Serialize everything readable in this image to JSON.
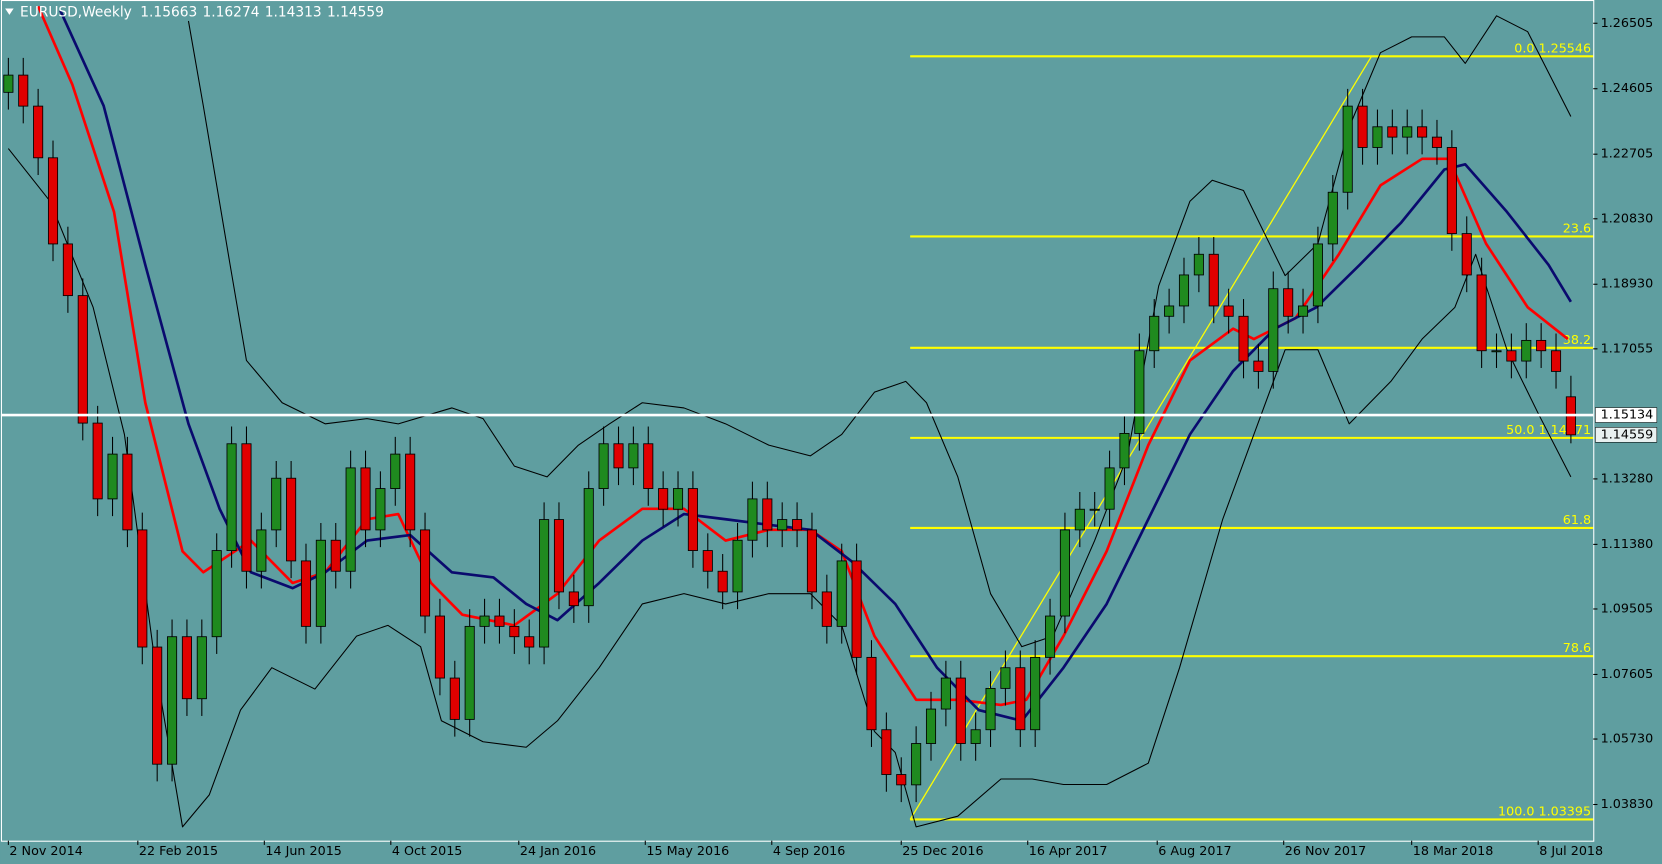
{
  "chart_data": {
    "type": "candlestick",
    "title": "EURUSD,Weekly",
    "open": [
      1.245,
      1.25,
      1.241,
      1.226,
      1.201,
      1.186,
      1.149,
      1.127,
      1.14,
      1.118,
      1.084,
      1.05,
      1.087,
      1.069,
      1.087,
      1.112,
      1.143,
      1.106,
      1.118,
      1.133,
      1.109,
      1.09,
      1.115,
      1.106,
      1.136,
      1.118,
      1.13,
      1.14,
      1.118,
      1.093,
      1.075,
      1.063,
      1.09,
      1.093,
      1.09,
      1.087,
      1.084,
      1.121,
      1.1,
      1.096,
      1.13,
      1.143,
      1.136,
      1.143,
      1.13,
      1.124,
      1.13,
      1.112,
      1.106,
      1.1,
      1.115,
      1.127,
      1.118,
      1.121,
      1.118,
      1.1,
      1.09,
      1.109,
      1.081,
      1.06,
      1.047,
      1.044,
      1.056,
      1.066,
      1.075,
      1.056,
      1.06,
      1.072,
      1.078,
      1.06,
      1.081,
      1.093,
      1.118,
      1.124,
      1.124,
      1.136,
      1.146,
      1.17,
      1.18,
      1.183,
      1.192,
      1.198,
      1.183,
      1.18,
      1.167,
      1.164,
      1.188,
      1.18,
      1.183,
      1.201,
      1.216,
      1.241,
      1.229,
      1.235,
      1.232,
      1.235,
      1.232,
      1.229,
      1.204,
      1.192,
      1.17,
      1.17,
      1.167,
      1.173,
      1.17,
      1.15663
    ],
    "high": [
      1.255,
      1.255,
      1.246,
      1.231,
      1.206,
      1.191,
      1.154,
      1.145,
      1.145,
      1.123,
      1.089,
      1.092,
      1.092,
      1.092,
      1.117,
      1.148,
      1.148,
      1.123,
      1.138,
      1.138,
      1.114,
      1.12,
      1.12,
      1.141,
      1.141,
      1.135,
      1.145,
      1.145,
      1.123,
      1.098,
      1.08,
      1.095,
      1.098,
      1.098,
      1.095,
      1.092,
      1.126,
      1.126,
      1.105,
      1.135,
      1.148,
      1.148,
      1.148,
      1.148,
      1.135,
      1.135,
      1.135,
      1.117,
      1.111,
      1.12,
      1.132,
      1.132,
      1.126,
      1.126,
      1.123,
      1.105,
      1.114,
      1.114,
      1.086,
      1.065,
      1.052,
      1.061,
      1.071,
      1.08,
      1.08,
      1.065,
      1.077,
      1.083,
      1.083,
      1.086,
      1.098,
      1.123,
      1.129,
      1.129,
      1.141,
      1.151,
      1.175,
      1.185,
      1.188,
      1.197,
      1.203,
      1.203,
      1.188,
      1.185,
      1.172,
      1.193,
      1.193,
      1.188,
      1.206,
      1.221,
      1.246,
      1.246,
      1.24,
      1.24,
      1.24,
      1.24,
      1.237,
      1.234,
      1.209,
      1.197,
      1.175,
      1.175,
      1.178,
      1.178,
      1.175,
      1.16274
    ],
    "low": [
      1.24,
      1.236,
      1.221,
      1.196,
      1.181,
      1.144,
      1.122,
      1.122,
      1.113,
      1.079,
      1.045,
      1.045,
      1.064,
      1.064,
      1.082,
      1.107,
      1.101,
      1.101,
      1.113,
      1.104,
      1.085,
      1.085,
      1.101,
      1.101,
      1.113,
      1.113,
      1.125,
      1.113,
      1.088,
      1.07,
      1.058,
      1.058,
      1.085,
      1.085,
      1.082,
      1.079,
      1.079,
      1.095,
      1.091,
      1.091,
      1.125,
      1.131,
      1.131,
      1.125,
      1.119,
      1.119,
      1.107,
      1.101,
      1.095,
      1.095,
      1.11,
      1.113,
      1.113,
      1.113,
      1.095,
      1.085,
      1.085,
      1.076,
      1.055,
      1.042,
      1.039,
      1.039,
      1.051,
      1.061,
      1.051,
      1.051,
      1.055,
      1.067,
      1.055,
      1.055,
      1.076,
      1.088,
      1.113,
      1.119,
      1.119,
      1.131,
      1.141,
      1.165,
      1.175,
      1.178,
      1.187,
      1.178,
      1.175,
      1.162,
      1.159,
      1.159,
      1.175,
      1.175,
      1.178,
      1.196,
      1.211,
      1.224,
      1.224,
      1.227,
      1.227,
      1.227,
      1.224,
      1.199,
      1.187,
      1.165,
      1.165,
      1.162,
      1.162,
      1.165,
      1.159,
      1.14313
    ],
    "close": [
      1.25,
      1.241,
      1.226,
      1.201,
      1.186,
      1.149,
      1.127,
      1.14,
      1.118,
      1.084,
      1.05,
      1.087,
      1.069,
      1.087,
      1.112,
      1.143,
      1.106,
      1.118,
      1.133,
      1.109,
      1.09,
      1.115,
      1.106,
      1.136,
      1.118,
      1.13,
      1.14,
      1.118,
      1.093,
      1.075,
      1.063,
      1.09,
      1.093,
      1.09,
      1.087,
      1.084,
      1.121,
      1.1,
      1.096,
      1.13,
      1.143,
      1.136,
      1.143,
      1.13,
      1.124,
      1.13,
      1.112,
      1.106,
      1.1,
      1.115,
      1.127,
      1.118,
      1.121,
      1.118,
      1.1,
      1.09,
      1.109,
      1.081,
      1.06,
      1.047,
      1.044,
      1.056,
      1.066,
      1.075,
      1.056,
      1.06,
      1.072,
      1.078,
      1.06,
      1.081,
      1.093,
      1.118,
      1.124,
      1.124,
      1.136,
      1.146,
      1.17,
      1.18,
      1.183,
      1.192,
      1.198,
      1.183,
      1.18,
      1.167,
      1.164,
      1.188,
      1.18,
      1.183,
      1.201,
      1.216,
      1.241,
      1.229,
      1.235,
      1.232,
      1.235,
      1.232,
      1.229,
      1.204,
      1.192,
      1.17,
      1.17,
      1.167,
      1.173,
      1.17,
      1.164,
      1.14559
    ],
    "up_color": "#1f8a1f",
    "down_color": "#e00000",
    "series": [
      {
        "color": "#ff0000",
        "width": 2.5,
        "x": [
          2,
          4.3,
          7.1,
          9.2,
          11.7,
          13.1,
          16.3,
          19.1,
          21.3,
          24.1,
          26.2,
          28.4,
          30.5,
          34.0,
          36.9,
          39.7,
          42.6,
          45.4,
          48.2,
          51.1,
          53.9,
          56.0,
          58.2,
          61.0,
          63.8,
          66.7,
          68.4,
          70.9,
          73.8,
          76.6,
          79.4,
          82.3,
          83.7,
          86.5,
          89.4,
          92.2,
          95.0,
          96.8,
          99.3,
          102.1,
          104.8
        ],
        "values": [
          1.27,
          1.2472,
          1.2103,
          1.1549,
          1.1118,
          1.1057,
          1.1149,
          1.1026,
          1.1057,
          1.1211,
          1.1226,
          1.1026,
          1.0934,
          1.0903,
          1.0995,
          1.1149,
          1.1241,
          1.1241,
          1.1149,
          1.118,
          1.118,
          1.1118,
          1.0872,
          1.0687,
          1.0687,
          1.0672,
          1.0687,
          1.0872,
          1.1118,
          1.1426,
          1.1672,
          1.1764,
          1.1734,
          1.1795,
          1.198,
          1.218,
          1.2257,
          1.2257,
          1.2011,
          1.1826,
          1.1734
        ]
      },
      {
        "color": "#0a0a6e",
        "width": 2.5,
        "x": [
          3.5,
          6.4,
          9.2,
          12.1,
          14.2,
          16.3,
          19.1,
          21.3,
          24.1,
          27.0,
          29.8,
          32.6,
          34.8,
          36.9,
          39.7,
          42.6,
          45.4,
          48.2,
          51.1,
          53.9,
          56.7,
          59.6,
          62.4,
          65.2,
          68.1,
          70.9,
          73.8,
          76.6,
          79.4,
          82.3,
          85.1,
          87.9,
          90.8,
          93.6,
          96.5,
          97.9,
          100.7,
          103.5,
          105.0
        ],
        "values": [
          1.2687,
          1.2411,
          1.1949,
          1.1488,
          1.1241,
          1.1057,
          1.1011,
          1.1057,
          1.1149,
          1.1165,
          1.1057,
          1.1042,
          1.0965,
          1.0918,
          1.1026,
          1.1149,
          1.1226,
          1.1211,
          1.1195,
          1.118,
          1.1088,
          1.0965,
          1.078,
          1.0657,
          1.0626,
          1.078,
          1.0965,
          1.1211,
          1.1457,
          1.1641,
          1.1764,
          1.1826,
          1.1949,
          1.2072,
          1.2226,
          1.2241,
          1.2103,
          1.1949,
          1.1842
        ]
      },
      {
        "color": "#000000",
        "width": 1,
        "x": [
          12.1,
          13.1,
          14.9,
          16.0,
          18.4,
          21.3,
          24.1,
          26.2,
          29.8,
          31.9,
          34.0,
          36.2,
          38.3,
          40.4,
          42.6,
          45.4,
          48.2,
          51.1,
          53.9,
          56.0,
          58.2,
          60.3,
          61.7,
          63.8,
          66.0,
          68.1,
          70.2,
          73.0,
          75.2,
          77.3,
          79.4,
          80.9,
          83.0,
          85.8,
          88.0,
          90.1,
          92.2,
          94.3,
          96.5,
          97.9,
          100.0,
          102.1,
          105.0
        ],
        "values": [
          1.2657,
          1.2411,
          1.1949,
          1.1672,
          1.1549,
          1.1488,
          1.1503,
          1.1488,
          1.1534,
          1.1503,
          1.1365,
          1.1334,
          1.1426,
          1.1488,
          1.1549,
          1.1534,
          1.1488,
          1.1426,
          1.1395,
          1.1457,
          1.158,
          1.1611,
          1.1549,
          1.1334,
          1.0995,
          1.0841,
          1.0872,
          1.1149,
          1.1395,
          1.1888,
          1.2134,
          1.2195,
          1.2165,
          1.1918,
          1.2011,
          1.2349,
          1.2565,
          1.2611,
          1.2611,
          1.2534,
          1.2672,
          1.2626,
          1.238
        ]
      },
      {
        "color": "#000000",
        "width": 1,
        "x": [
          0,
          2.8,
          5.7,
          7.8,
          9.9,
          11.7,
          13.5,
          15.6,
          17.7,
          20.6,
          23.4,
          25.5,
          27.7,
          29.1,
          31.9,
          34.8,
          36.9,
          39.7,
          42.6,
          45.4,
          48.2,
          51.1,
          53.9,
          56.0,
          58.2,
          59.6,
          61.0,
          63.8,
          66.7,
          68.8,
          70.9,
          73.8,
          76.6,
          78.7,
          81.6,
          83.7,
          85.8,
          88.0,
          90.1,
          92.9,
          95.0,
          97.2,
          98.6,
          100.7,
          102.8,
          105.0
        ],
        "values": [
          1.2287,
          1.2134,
          1.1826,
          1.1457,
          1.078,
          1.0318,
          1.0411,
          1.0657,
          1.078,
          1.0718,
          1.0872,
          1.0903,
          1.0841,
          1.0626,
          1.0565,
          1.0549,
          1.0626,
          1.078,
          1.0965,
          1.0995,
          1.0965,
          1.0995,
          1.0995,
          1.0903,
          1.0595,
          1.0534,
          1.0318,
          1.0349,
          1.0457,
          1.0457,
          1.0441,
          1.0441,
          1.0503,
          1.078,
          1.1211,
          1.1457,
          1.1703,
          1.1703,
          1.1488,
          1.1611,
          1.1734,
          1.1826,
          1.198,
          1.1703,
          1.1518,
          1.1334
        ]
      }
    ],
    "fibonacci": {
      "color": "#ffff00",
      "start_x": 60.6,
      "levels": [
        {
          "value": 1.25546,
          "label": "0.0   1.25546"
        },
        {
          "value": 1.20318,
          "label": "23.6"
        },
        {
          "value": 1.17084,
          "label": "38.2"
        },
        {
          "value": 1.14471,
          "label": "50.0   1.14471"
        },
        {
          "value": 1.11857,
          "label": "61.8"
        },
        {
          "value": 1.08136,
          "label": "78.6"
        },
        {
          "value": 1.03395,
          "label": "100.0   1.03395"
        }
      ],
      "trendline": {
        "x": [
          60.6,
          91.6
        ],
        "values": [
          1.03395,
          1.25546
        ]
      }
    },
    "hline": {
      "value": 1.15134,
      "color": "#ffffff"
    },
    "price_tags": [
      1.15134,
      1.14559
    ],
    "xlim": [
      -0.5,
      106.5
    ],
    "ylim": [
      1.0278,
      1.2718
    ],
    "xticks": [
      {
        "value": 0,
        "label": "2 Nov 2014"
      },
      {
        "value": 8.7,
        "label": "22 Feb 2015"
      },
      {
        "value": 17.2,
        "label": "14 Jun 2015"
      },
      {
        "value": 25.7,
        "label": "4 Oct 2015"
      },
      {
        "value": 34.3,
        "label": "24 Jan 2016"
      },
      {
        "value": 42.8,
        "label": "15 May 2016"
      },
      {
        "value": 51.3,
        "label": "4 Sep 2016"
      },
      {
        "value": 60.0,
        "label": "25 Dec 2016"
      },
      {
        "value": 68.5,
        "label": "16 Apr 2017"
      },
      {
        "value": 77.2,
        "label": "6 Aug 2017"
      },
      {
        "value": 85.7,
        "label": "26 Nov 2017"
      },
      {
        "value": 94.3,
        "label": "18 Mar 2018"
      },
      {
        "value": 102.8,
        "label": "8 Jul 2018"
      }
    ],
    "yticks": [
      1.26505,
      1.24605,
      1.22705,
      {
        "value": 1.2083,
        "label": "1.20830"
      },
      {
        "value": 1.1893,
        "label": "1.18930"
      },
      1.17055,
      {
        "value": 1.1328,
        "label": "1.13280"
      },
      {
        "value": 1.1138,
        "label": "1.11380"
      },
      1.09505,
      1.07605,
      {
        "value": 1.0573,
        "label": "1.05730"
      },
      {
        "value": 1.0383,
        "label": "1.03830"
      }
    ]
  }
}
